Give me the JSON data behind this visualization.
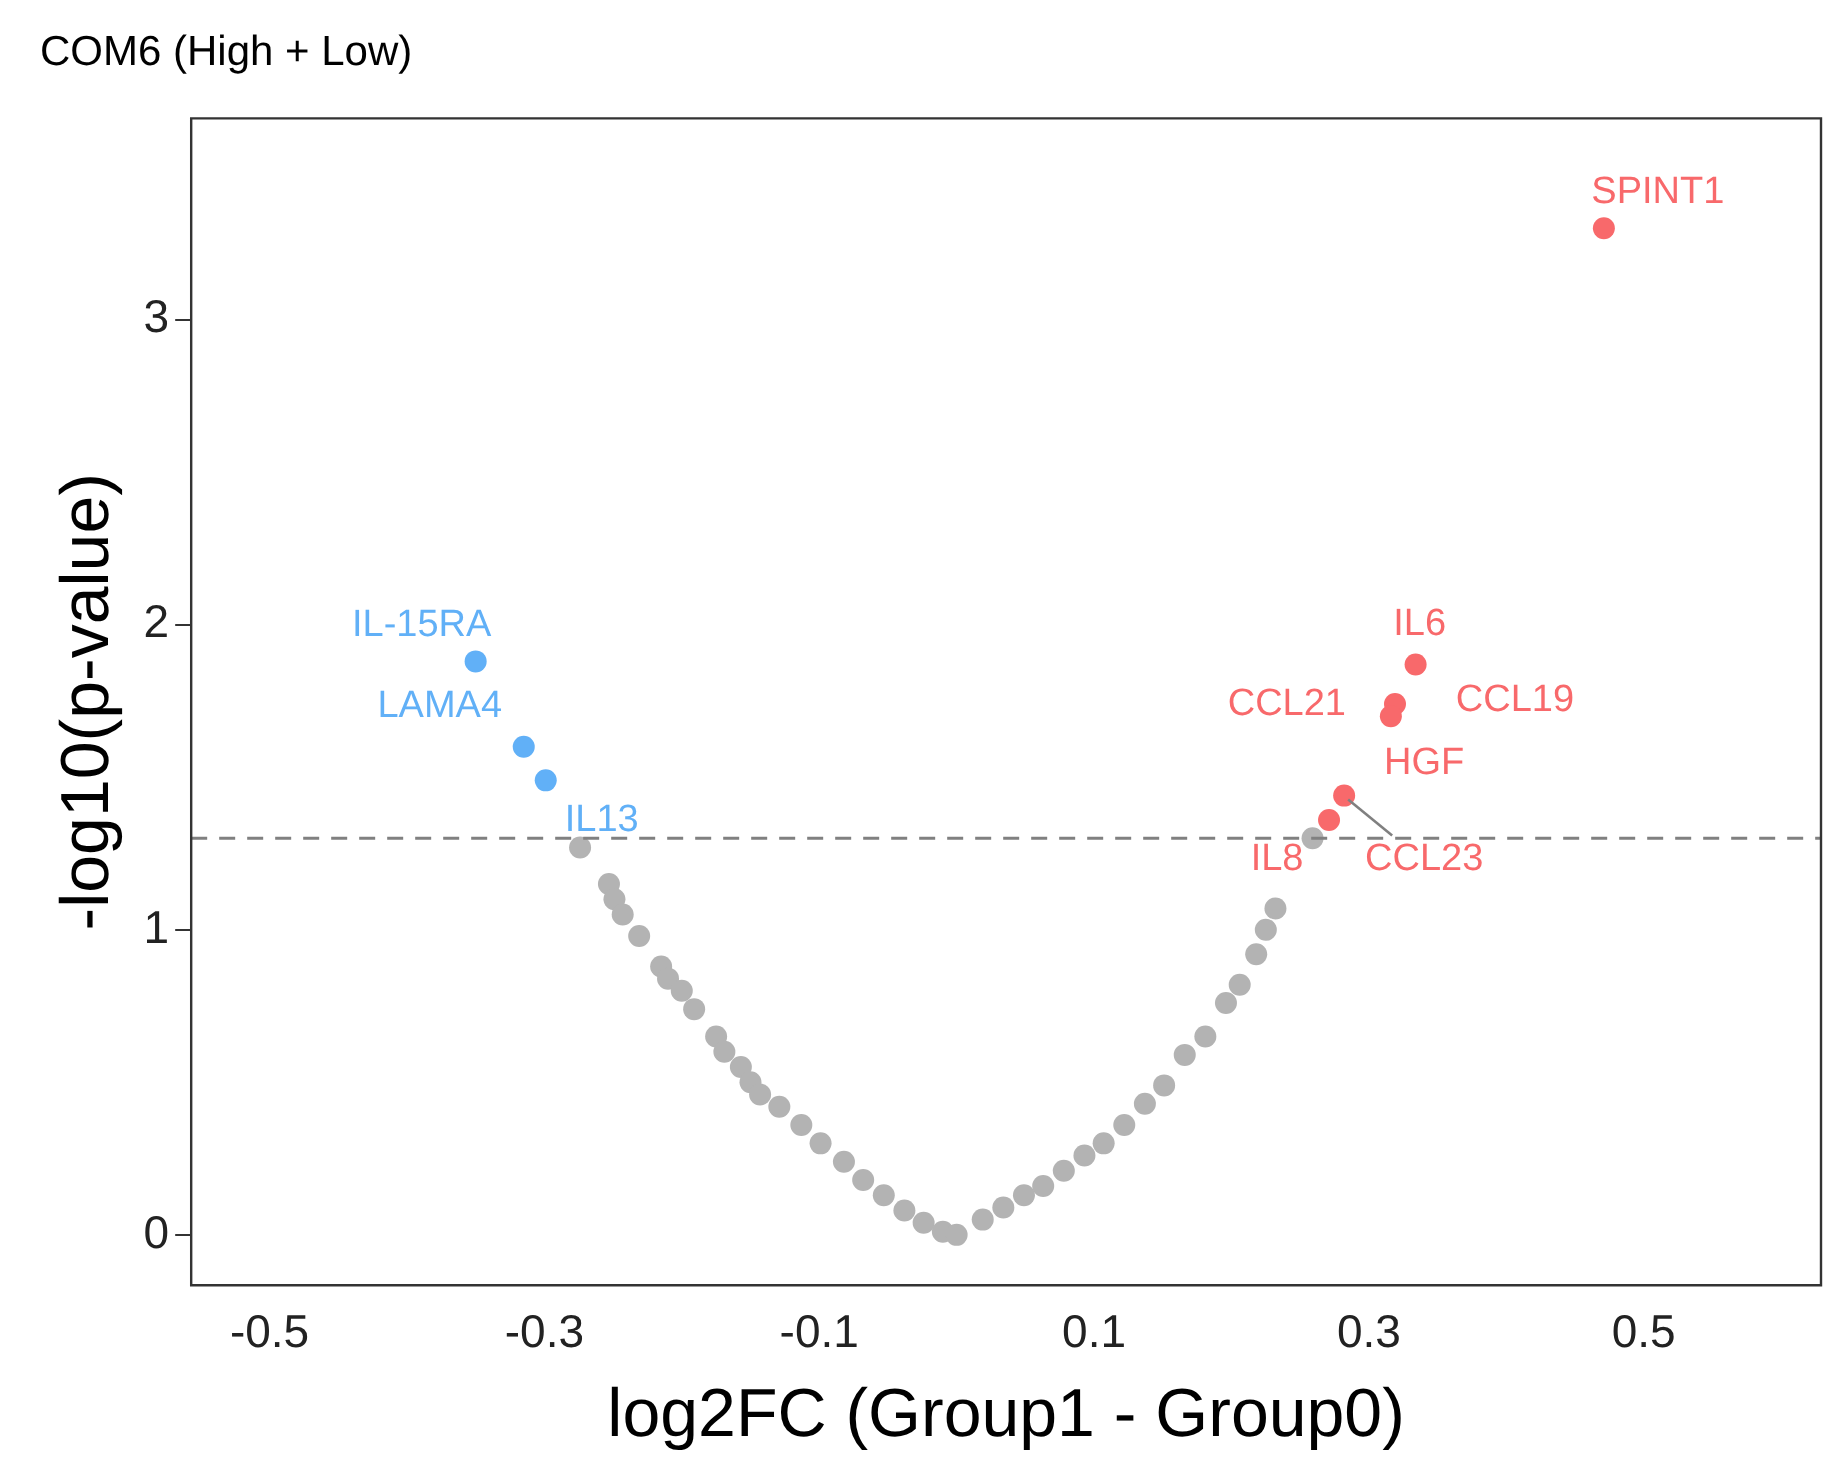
{
  "chart_data": {
    "type": "scatter",
    "title": "COM6 (High + Low)",
    "xlabel": "log2FC (Group1 - Group0)",
    "ylabel": "-log10(p-value)",
    "series": [
      {
        "color": "#b3b3b3",
        "x": [
          -0.274,
          -0.253,
          -0.249,
          -0.243,
          -0.231,
          -0.215,
          -0.21,
          -0.2,
          -0.191,
          -0.175,
          -0.169,
          -0.157,
          -0.15,
          -0.143,
          -0.129,
          -0.113,
          -0.099,
          -0.082,
          -0.068,
          -0.053,
          -0.038,
          -0.024,
          -0.01,
          0,
          0.019,
          0.034,
          0.049,
          0.063,
          0.078,
          0.093,
          0.107,
          0.122,
          0.137,
          0.151,
          0.166,
          0.181,
          0.196,
          0.206,
          0.218,
          0.225,
          0.232,
          0.259
        ],
        "values": [
          1.27,
          1.15,
          1.1,
          1.05,
          0.98,
          0.88,
          0.84,
          0.8,
          0.74,
          0.65,
          0.6,
          0.55,
          0.5,
          0.46,
          0.42,
          0.36,
          0.3,
          0.24,
          0.18,
          0.13,
          0.08,
          0.04,
          0.01,
          0,
          0.05,
          0.09,
          0.13,
          0.16,
          0.21,
          0.26,
          0.3,
          0.36,
          0.43,
          0.49,
          0.59,
          0.65,
          0.76,
          0.82,
          0.92,
          1.0,
          1.07,
          1.3
        ]
      },
      {
        "color": "#f8696b",
        "x": [
          0.471,
          0.334,
          0.319,
          0.316,
          0.282,
          0.271
        ],
        "values": [
          3.3,
          1.87,
          1.74,
          1.7,
          1.44,
          1.36
        ]
      },
      {
        "color": "#61b0f7",
        "x": [
          -0.35,
          -0.315,
          -0.299
        ],
        "values": [
          1.88,
          1.6,
          1.49
        ]
      }
    ],
    "annotations": [
      {
        "text": "SPINT1",
        "x": 0.471,
        "y": 3.3
      },
      {
        "text": "IL6",
        "x": 0.334,
        "y": 1.87
      },
      {
        "text": "CCL19",
        "x": 0.319,
        "y": 1.74
      },
      {
        "text": "CCL21",
        "x": 0.316,
        "y": 1.7
      },
      {
        "text": "HGF",
        "x": 0.282,
        "y": 1.44
      },
      {
        "text": "CCL23",
        "x": 0.282,
        "y": 1.44
      },
      {
        "text": "IL8",
        "x": 0.271,
        "y": 1.36
      },
      {
        "text": "IL-15RA",
        "x": -0.35,
        "y": 1.88
      },
      {
        "text": "LAMA4",
        "x": -0.315,
        "y": 1.6
      },
      {
        "text": "IL13",
        "x": -0.299,
        "y": 1.49
      }
    ],
    "ref_lines": [
      {
        "axis": "y",
        "value": 1.3,
        "color": "#808080",
        "line_style": "dashed"
      }
    ],
    "xlim": [
      -0.557,
      0.629
    ],
    "xticks": [
      -0.5,
      -0.3,
      -0.1,
      0.1,
      0.3,
      0.5
    ],
    "ylim": [
      -0.165,
      3.66
    ],
    "yticks": [
      0,
      1,
      2,
      3
    ],
    "marker": "circle",
    "grid": false,
    "legend": false
  }
}
